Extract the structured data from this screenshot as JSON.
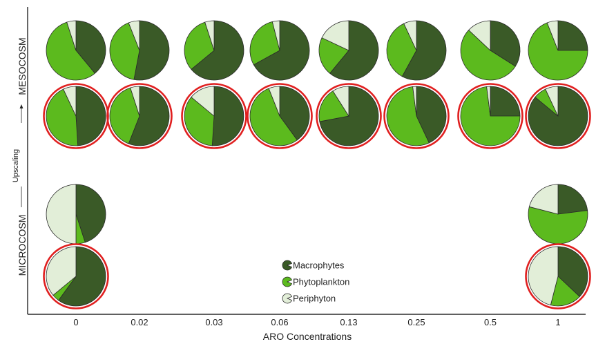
{
  "colors": {
    "Macrophytes": "#3a5a27",
    "Phytoplankton": "#5cba1e",
    "Periphyton": "#e2eed8",
    "outline": "#2a2a2a",
    "highlight_ring": "#e01f1f",
    "axis": "#000000"
  },
  "chart_data": {
    "type": "pie",
    "title": "",
    "xlabel": "ARO Concentrations",
    "categories": [
      "0",
      "0.02",
      "0.03",
      "0.06",
      "0.13",
      "0.25",
      "0.5",
      "1"
    ],
    "y_axis": {
      "upper_label": "MESOCOSM",
      "middle_label": "Upscaling",
      "lower_label": "MICROCOSM"
    },
    "legend": {
      "position": "bottom-center",
      "entries": [
        "Macrophytes",
        "Phytoplankton",
        "Periphyton"
      ]
    },
    "rows": [
      {
        "system": "MESOCOSM",
        "highlighted": false,
        "pies": [
          {
            "concentration": "0",
            "Macrophytes": 0.39,
            "Phytoplankton": 0.56,
            "Periphyton": 0.05
          },
          {
            "concentration": "0.02",
            "Macrophytes": 0.53,
            "Phytoplankton": 0.41,
            "Periphyton": 0.06
          },
          {
            "concentration": "0.03",
            "Macrophytes": 0.64,
            "Phytoplankton": 0.31,
            "Periphyton": 0.05
          },
          {
            "concentration": "0.06",
            "Macrophytes": 0.67,
            "Phytoplankton": 0.29,
            "Periphyton": 0.04
          },
          {
            "concentration": "0.13",
            "Macrophytes": 0.61,
            "Phytoplankton": 0.21,
            "Periphyton": 0.18
          },
          {
            "concentration": "0.25",
            "Macrophytes": 0.58,
            "Phytoplankton": 0.35,
            "Periphyton": 0.07
          },
          {
            "concentration": "0.5",
            "Macrophytes": 0.34,
            "Phytoplankton": 0.53,
            "Periphyton": 0.13
          },
          {
            "concentration": "1",
            "Macrophytes": 0.25,
            "Phytoplankton": 0.69,
            "Periphyton": 0.06
          }
        ]
      },
      {
        "system": "MESOCOSM",
        "highlighted": true,
        "pies": [
          {
            "concentration": "0",
            "Macrophytes": 0.49,
            "Phytoplankton": 0.44,
            "Periphyton": 0.07
          },
          {
            "concentration": "0.02",
            "Macrophytes": 0.56,
            "Phytoplankton": 0.39,
            "Periphyton": 0.05
          },
          {
            "concentration": "0.03",
            "Macrophytes": 0.51,
            "Phytoplankton": 0.35,
            "Periphyton": 0.14
          },
          {
            "concentration": "0.06",
            "Macrophytes": 0.4,
            "Phytoplankton": 0.54,
            "Periphyton": 0.06
          },
          {
            "concentration": "0.13",
            "Macrophytes": 0.72,
            "Phytoplankton": 0.19,
            "Periphyton": 0.09
          },
          {
            "concentration": "0.25",
            "Macrophytes": 0.43,
            "Phytoplankton": 0.55,
            "Periphyton": 0.02
          },
          {
            "concentration": "0.5",
            "Macrophytes": 0.25,
            "Phytoplankton": 0.73,
            "Periphyton": 0.02
          },
          {
            "concentration": "1",
            "Macrophytes": 0.86,
            "Phytoplankton": 0.07,
            "Periphyton": 0.07
          }
        ]
      },
      {
        "system": "MICROCOSM",
        "highlighted": false,
        "pies": [
          {
            "concentration": "0",
            "Macrophytes": 0.45,
            "Phytoplankton": 0.05,
            "Periphyton": 0.5
          },
          {
            "concentration": "1",
            "Macrophytes": 0.23,
            "Phytoplankton": 0.56,
            "Periphyton": 0.21
          }
        ]
      },
      {
        "system": "MICROCOSM",
        "highlighted": true,
        "pies": [
          {
            "concentration": "0",
            "Macrophytes": 0.6,
            "Phytoplankton": 0.04,
            "Periphyton": 0.36
          },
          {
            "concentration": "1",
            "Macrophytes": 0.37,
            "Phytoplankton": 0.17,
            "Periphyton": 0.46
          }
        ]
      }
    ]
  }
}
